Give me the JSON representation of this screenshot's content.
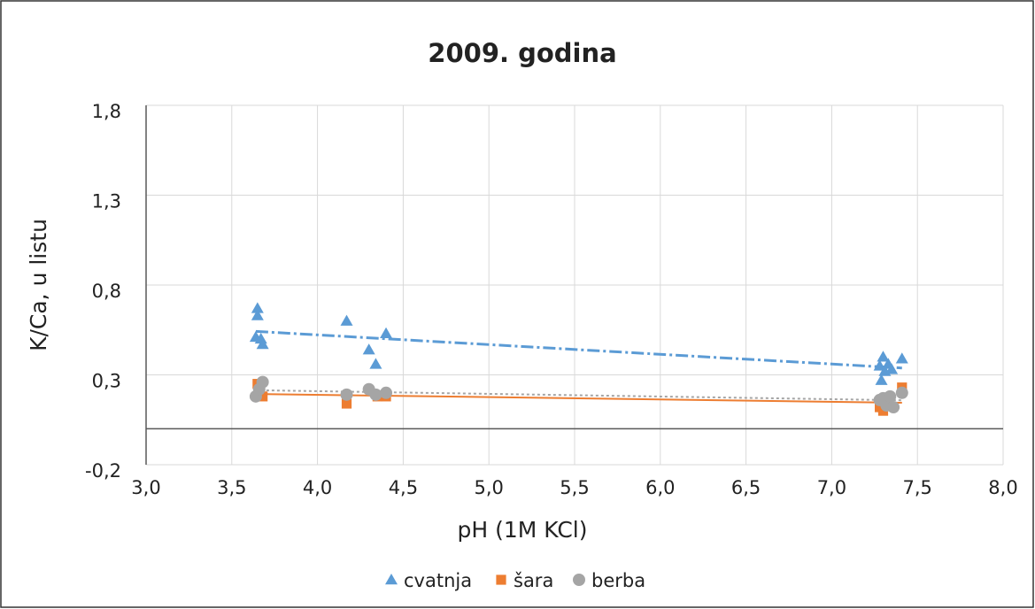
{
  "chart_data": {
    "type": "scatter",
    "title": "2009. godina",
    "xlabel": "pH (1M KCl)",
    "ylabel": "K/Ca, u listu",
    "xlim": [
      3.0,
      8.0
    ],
    "ylim": [
      -0.2,
      1.8
    ],
    "xticks": [
      {
        "value": 3.0,
        "label": "3,0"
      },
      {
        "value": 3.5,
        "label": "3,5"
      },
      {
        "value": 4.0,
        "label": "4,0"
      },
      {
        "value": 4.5,
        "label": "4,5"
      },
      {
        "value": 5.0,
        "label": "5,0"
      },
      {
        "value": 5.5,
        "label": "5,5"
      },
      {
        "value": 6.0,
        "label": "6,0"
      },
      {
        "value": 6.5,
        "label": "6,5"
      },
      {
        "value": 7.0,
        "label": "7,0"
      },
      {
        "value": 7.5,
        "label": "7,5"
      },
      {
        "value": 8.0,
        "label": "8,0"
      }
    ],
    "yticks": [
      {
        "value": -0.2,
        "label": "-0,2"
      },
      {
        "value": 0.3,
        "label": "0,3"
      },
      {
        "value": 0.8,
        "label": "0,8"
      },
      {
        "value": 1.3,
        "label": "1,3"
      },
      {
        "value": 1.8,
        "label": "1,8"
      }
    ],
    "grid": true,
    "legend": "bottom",
    "trendline": true,
    "series": [
      {
        "name": "cvatnja",
        "color": "#5b9bd5",
        "marker": "triangle",
        "x": [
          3.65,
          3.65,
          3.64,
          3.67,
          3.68,
          4.17,
          4.3,
          4.34,
          4.4,
          7.28,
          7.29,
          7.3,
          7.31,
          7.33,
          7.35,
          7.41
        ],
        "values": [
          0.67,
          0.63,
          0.51,
          0.5,
          0.47,
          0.6,
          0.44,
          0.36,
          0.53,
          0.35,
          0.27,
          0.4,
          0.32,
          0.36,
          0.33,
          0.39
        ]
      },
      {
        "name": "šara",
        "color": "#ed7d31",
        "marker": "square",
        "x": [
          3.65,
          3.66,
          3.68,
          4.17,
          4.35,
          4.4,
          7.28,
          7.3,
          7.32,
          7.41
        ],
        "values": [
          0.25,
          0.2,
          0.18,
          0.14,
          0.18,
          0.18,
          0.12,
          0.1,
          0.14,
          0.23
        ]
      },
      {
        "name": "berba",
        "color": "#a5a5a5",
        "marker": "circle",
        "x": [
          3.64,
          3.66,
          3.68,
          4.17,
          4.3,
          4.34,
          4.4,
          7.28,
          7.3,
          7.32,
          7.34,
          7.36,
          7.41
        ],
        "values": [
          0.18,
          0.22,
          0.26,
          0.19,
          0.22,
          0.19,
          0.2,
          0.16,
          0.17,
          0.13,
          0.18,
          0.12,
          0.2
        ]
      }
    ]
  }
}
